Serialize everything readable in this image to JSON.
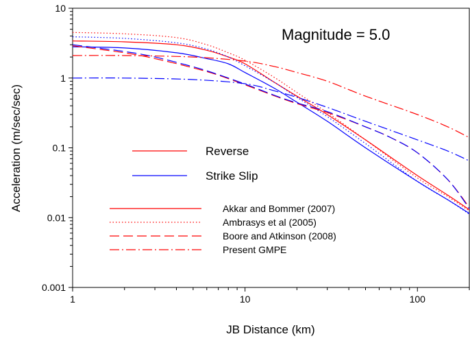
{
  "chart_data": {
    "type": "line",
    "annotation": "Magnitude = 5.0",
    "xlabel": "JB Distance (km)",
    "ylabel": "Acceleration (m/sec/sec)",
    "xscale": "log",
    "yscale": "log",
    "xlim": [
      1,
      200
    ],
    "ylim": [
      0.001,
      10
    ],
    "x_ticks": [
      1,
      10,
      100
    ],
    "x_tick_labels": [
      "1",
      "10",
      "100"
    ],
    "y_ticks": [
      0.001,
      0.01,
      0.1,
      1,
      10
    ],
    "y_tick_labels": [
      "0.001",
      "0.01",
      "0.1",
      "1",
      "10"
    ],
    "grid": false,
    "color_legend": [
      {
        "label": "Reverse",
        "color": "#ff0000"
      },
      {
        "label": "Strike Slip",
        "color": "#0000ff"
      }
    ],
    "style_legend": [
      {
        "label": "Akkar and Bommer (2007)",
        "dash": "solid",
        "color": "#ff0000"
      },
      {
        "label": "Ambrasys et al (2005)",
        "dash": "dotted",
        "color": "#ff0000"
      },
      {
        "label": "Boore and Atkinson (2008)",
        "dash": "dashed",
        "color": "#ff0000"
      },
      {
        "label": "Present GMPE",
        "dash": "dashdot",
        "color": "#ff0000"
      }
    ],
    "series": [
      {
        "model": "Akkar and Bommer (2007)",
        "mechanism": "Reverse",
        "color": "#ff0000",
        "dash": "solid",
        "x": [
          1,
          2,
          4,
          6,
          8,
          10,
          15,
          20,
          30,
          50,
          100,
          150,
          200
        ],
        "y": [
          3.4,
          3.3,
          3.0,
          2.5,
          2.0,
          1.6,
          0.85,
          0.55,
          0.3,
          0.13,
          0.04,
          0.021,
          0.013
        ]
      },
      {
        "model": "Akkar and Bommer (2007)",
        "mechanism": "Strike Slip",
        "color": "#0000ff",
        "dash": "solid",
        "x": [
          1,
          2,
          4,
          6,
          8,
          10,
          15,
          20,
          30,
          50,
          100,
          150,
          200
        ],
        "y": [
          2.8,
          2.7,
          2.3,
          1.9,
          1.6,
          1.2,
          0.7,
          0.45,
          0.24,
          0.1,
          0.033,
          0.018,
          0.0115
        ]
      },
      {
        "model": "Ambrasys et al (2005)",
        "mechanism": "Reverse",
        "color": "#ff0000",
        "dash": "dotted",
        "x": [
          1,
          2,
          4,
          6,
          8,
          10,
          15,
          20,
          30,
          50,
          100,
          150,
          200
        ],
        "y": [
          4.5,
          4.3,
          3.8,
          3.0,
          2.3,
          1.8,
          1.0,
          0.62,
          0.32,
          0.13,
          0.037,
          0.02,
          0.0125
        ]
      },
      {
        "model": "Ambrasys et al (2005)",
        "mechanism": "Strike Slip",
        "color": "#0000ff",
        "dash": "dotted",
        "x": [
          1,
          2,
          4,
          6,
          8,
          10,
          15,
          20,
          30,
          50,
          100,
          150,
          200
        ],
        "y": [
          3.9,
          3.7,
          3.2,
          2.6,
          2.0,
          1.5,
          0.85,
          0.53,
          0.28,
          0.115,
          0.033,
          0.018,
          0.0112
        ]
      },
      {
        "model": "Boore and Atkinson (2008)",
        "mechanism": "Reverse",
        "color": "#ff0000",
        "dash": "dashed",
        "x": [
          1,
          2,
          3,
          5,
          7,
          10,
          15,
          20,
          30,
          50,
          70,
          100,
          150,
          200
        ],
        "y": [
          2.9,
          2.3,
          1.9,
          1.4,
          1.1,
          0.8,
          0.55,
          0.43,
          0.32,
          0.2,
          0.14,
          0.085,
          0.035,
          0.014
        ]
      },
      {
        "model": "Boore and Atkinson (2008)",
        "mechanism": "Strike Slip",
        "color": "#0000ff",
        "dash": "dashed",
        "x": [
          1,
          2,
          3,
          5,
          7,
          10,
          15,
          20,
          30,
          50,
          70,
          100,
          150,
          200
        ],
        "y": [
          3.0,
          2.4,
          2.0,
          1.45,
          1.12,
          0.82,
          0.56,
          0.44,
          0.33,
          0.2,
          0.14,
          0.085,
          0.035,
          0.0135
        ]
      },
      {
        "model": "Present GMPE",
        "mechanism": "Reverse",
        "color": "#ff0000",
        "dash": "dashdot",
        "x": [
          1,
          2,
          5,
          10,
          15,
          20,
          30,
          50,
          100,
          150,
          200
        ],
        "y": [
          2.1,
          2.1,
          2.0,
          1.75,
          1.45,
          1.2,
          0.9,
          0.55,
          0.3,
          0.2,
          0.14
        ]
      },
      {
        "model": "Present GMPE",
        "mechanism": "Strike Slip",
        "color": "#0000ff",
        "dash": "dashdot",
        "x": [
          1,
          2,
          5,
          10,
          15,
          20,
          30,
          50,
          100,
          150,
          200
        ],
        "y": [
          1.0,
          1.0,
          0.95,
          0.83,
          0.65,
          0.53,
          0.38,
          0.24,
          0.13,
          0.09,
          0.065
        ]
      }
    ]
  }
}
